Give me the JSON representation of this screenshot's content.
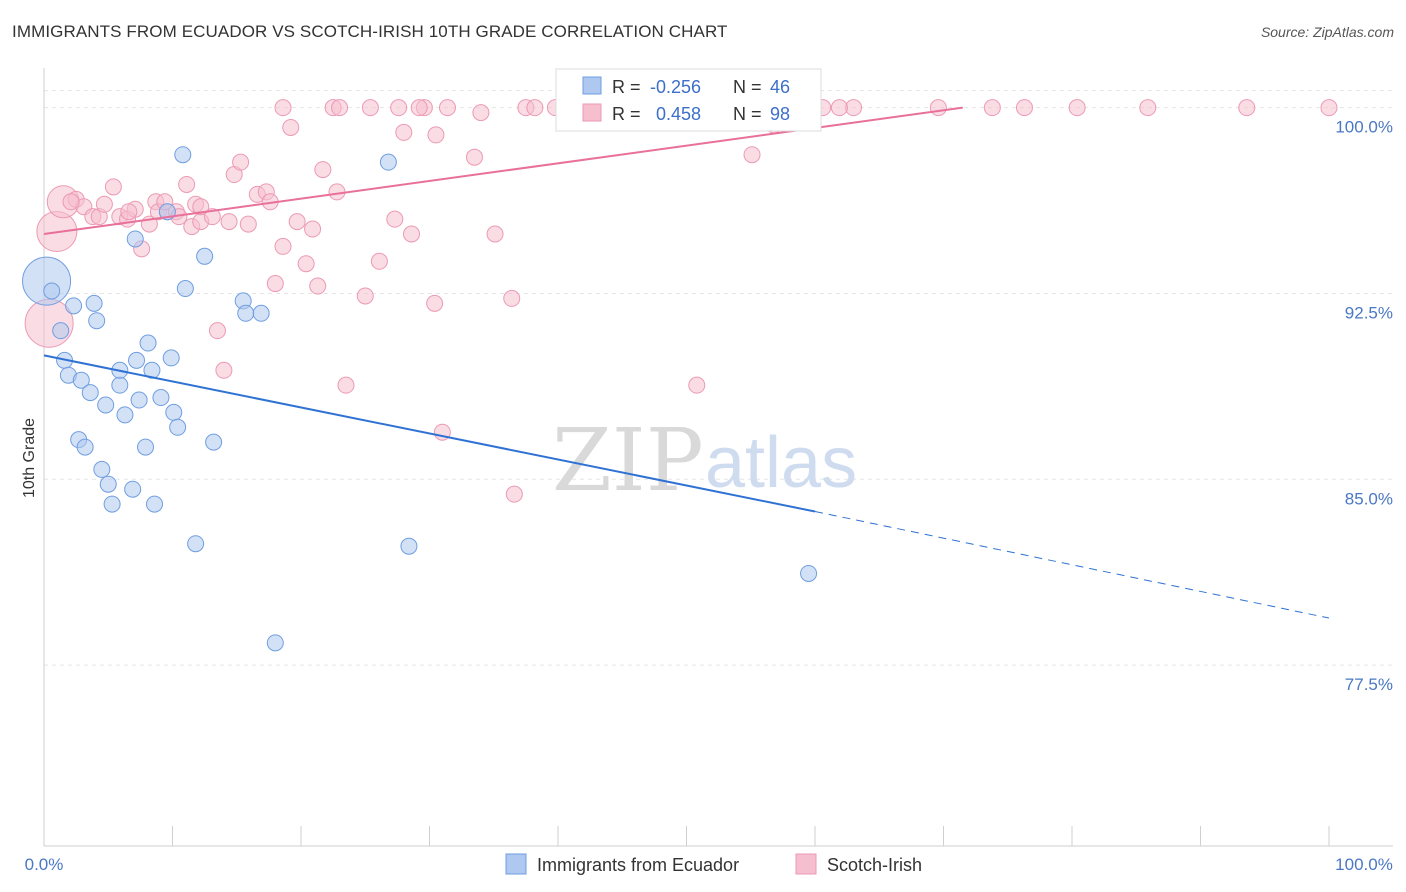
{
  "title": "IMMIGRANTS FROM ECUADOR VS SCOTCH-IRISH 10TH GRADE CORRELATION CHART",
  "source": "Source: ZipAtlas.com",
  "watermark": {
    "zip": "ZIP",
    "atlas": "atlas"
  },
  "colors": {
    "blue_fill": "#aec8ef",
    "blue_stroke": "#6f9ee0",
    "blue_line": "#2f72d4",
    "pink_fill": "#f5bfcf",
    "pink_stroke": "#ec9ab4",
    "pink_line": "#e8709a",
    "grid": "#e5e5e5",
    "tick_text": "#4a78c4"
  },
  "stats": [
    {
      "r_label": "R =",
      "r_value": "-0.256",
      "n_label": "N =",
      "n_value": "46"
    },
    {
      "r_label": "R =",
      "r_value": "0.458",
      "n_label": "N =",
      "n_value": "98"
    }
  ],
  "chart_data": {
    "type": "scatter",
    "title": "IMMIGRANTS FROM ECUADOR VS SCOTCH-IRISH 10TH GRADE CORRELATION CHART",
    "xlabel": "",
    "ylabel": "10th Grade",
    "xlim": [
      0,
      100
    ],
    "ylim": [
      70.2,
      101.6
    ],
    "x_tick_labels": [
      "0.0%",
      "100.0%"
    ],
    "y_ticks": [
      77.5,
      85.0,
      92.5,
      100.0
    ],
    "y_tick_labels": [
      "77.5%",
      "85.0%",
      "92.5%",
      "100.0%"
    ],
    "grid": true,
    "legend_position": "bottom-center",
    "series": [
      {
        "name": "Immigrants from Ecuador",
        "color": "#aec8ef",
        "trend": {
          "x": [
            0,
            60,
            100
          ],
          "y": [
            90.0,
            83.7,
            79.4
          ],
          "solid_until": 60
        },
        "points": [
          [
            0.2,
            93.0,
            3
          ],
          [
            0.6,
            92.6,
            1
          ],
          [
            1.3,
            91.0,
            1
          ],
          [
            2.3,
            92.0,
            1
          ],
          [
            3.9,
            92.1,
            1
          ],
          [
            4.1,
            91.4,
            1
          ],
          [
            1.6,
            89.8,
            1
          ],
          [
            1.9,
            89.2,
            1
          ],
          [
            2.9,
            89.0,
            1
          ],
          [
            3.6,
            88.5,
            1
          ],
          [
            4.8,
            88.0,
            1
          ],
          [
            5.9,
            88.8,
            1
          ],
          [
            5.9,
            89.4,
            1
          ],
          [
            6.3,
            87.6,
            1
          ],
          [
            7.2,
            89.8,
            1
          ],
          [
            7.4,
            88.2,
            1
          ],
          [
            8.1,
            90.5,
            1
          ],
          [
            8.4,
            89.4,
            1
          ],
          [
            9.1,
            88.3,
            1
          ],
          [
            9.9,
            89.9,
            1
          ],
          [
            10.1,
            87.7,
            1
          ],
          [
            10.4,
            87.1,
            1
          ],
          [
            2.7,
            86.6,
            1
          ],
          [
            3.2,
            86.3,
            1
          ],
          [
            7.9,
            86.3,
            1
          ],
          [
            4.5,
            85.4,
            1
          ],
          [
            5.0,
            84.8,
            1
          ],
          [
            6.9,
            84.6,
            1
          ],
          [
            5.3,
            84.0,
            1
          ],
          [
            8.6,
            84.0,
            1
          ],
          [
            11.0,
            92.7,
            1
          ],
          [
            12.5,
            94.0,
            1
          ],
          [
            15.5,
            92.2,
            1
          ],
          [
            15.7,
            91.7,
            1
          ],
          [
            16.9,
            91.7,
            1
          ],
          [
            10.8,
            98.1,
            1
          ],
          [
            13.2,
            86.5,
            1
          ],
          [
            11.8,
            82.4,
            1
          ],
          [
            7.1,
            94.7,
            1
          ],
          [
            9.6,
            95.8,
            1
          ],
          [
            26.8,
            97.8,
            1
          ],
          [
            28.4,
            82.3,
            1
          ],
          [
            59.5,
            81.2,
            1
          ],
          [
            18.0,
            78.4,
            1
          ]
        ]
      },
      {
        "name": "Scotch-Irish",
        "color": "#f5bfcf",
        "trend": {
          "x": [
            0,
            71.5
          ],
          "y": [
            94.9,
            100.0
          ],
          "solid_until": 71.5
        },
        "points": [
          [
            0.4,
            91.3,
            3
          ],
          [
            1.0,
            95.0,
            2.5
          ],
          [
            1.5,
            96.2,
            2
          ],
          [
            2.5,
            96.3,
            1
          ],
          [
            3.1,
            96.0,
            1
          ],
          [
            3.8,
            95.6,
            1
          ],
          [
            4.3,
            95.6,
            1
          ],
          [
            4.7,
            96.1,
            1
          ],
          [
            5.4,
            96.8,
            1
          ],
          [
            5.9,
            95.6,
            1
          ],
          [
            6.5,
            95.5,
            1
          ],
          [
            7.1,
            95.9,
            1
          ],
          [
            7.6,
            94.3,
            1
          ],
          [
            8.2,
            95.3,
            1
          ],
          [
            8.7,
            96.2,
            1
          ],
          [
            8.9,
            95.8,
            1
          ],
          [
            9.6,
            95.8,
            1
          ],
          [
            10.3,
            95.8,
            1
          ],
          [
            10.5,
            95.6,
            1
          ],
          [
            11.1,
            96.9,
            1
          ],
          [
            11.5,
            95.2,
            1
          ],
          [
            11.8,
            96.1,
            1
          ],
          [
            12.2,
            95.4,
            1
          ],
          [
            13.1,
            95.6,
            1
          ],
          [
            13.5,
            91.0,
            1
          ],
          [
            14.4,
            95.4,
            1
          ],
          [
            14.8,
            97.3,
            1
          ],
          [
            15.3,
            97.8,
            1
          ],
          [
            15.9,
            95.3,
            1
          ],
          [
            16.6,
            96.5,
            1
          ],
          [
            17.3,
            96.6,
            1
          ],
          [
            17.6,
            96.2,
            1
          ],
          [
            18.0,
            92.9,
            1
          ],
          [
            18.6,
            94.4,
            1
          ],
          [
            19.2,
            99.2,
            1
          ],
          [
            19.7,
            95.4,
            1
          ],
          [
            20.4,
            93.7,
            1
          ],
          [
            20.9,
            95.1,
            1
          ],
          [
            21.3,
            92.8,
            1
          ],
          [
            21.7,
            97.5,
            1
          ],
          [
            22.8,
            96.6,
            1
          ],
          [
            23.5,
            88.8,
            1
          ],
          [
            25.0,
            92.4,
            1
          ],
          [
            26.1,
            93.8,
            1
          ],
          [
            27.3,
            95.5,
            1
          ],
          [
            28.0,
            99.0,
            1
          ],
          [
            28.6,
            94.9,
            1
          ],
          [
            29.6,
            100.0,
            1
          ],
          [
            30.4,
            92.1,
            1
          ],
          [
            30.5,
            98.9,
            1
          ],
          [
            31.0,
            86.9,
            1
          ],
          [
            33.5,
            98.0,
            1
          ],
          [
            34.0,
            99.8,
            1
          ],
          [
            35.1,
            94.9,
            1
          ],
          [
            36.4,
            92.3,
            1
          ],
          [
            36.6,
            84.4,
            1
          ],
          [
            37.5,
            100.0,
            1
          ],
          [
            42.4,
            100.0,
            1
          ],
          [
            50.3,
            100.0,
            1
          ],
          [
            50.8,
            88.8,
            1
          ],
          [
            53.4,
            100.0,
            1
          ],
          [
            55.1,
            98.1,
            1
          ],
          [
            56.8,
            99.3,
            1
          ],
          [
            57.9,
            100.0,
            1
          ],
          [
            60.6,
            100.0,
            1
          ],
          [
            63.0,
            100.0,
            1
          ],
          [
            69.6,
            100.0,
            1
          ],
          [
            73.8,
            100.0,
            1
          ],
          [
            76.3,
            100.0,
            1
          ],
          [
            80.4,
            100.0,
            1
          ],
          [
            85.9,
            100.0,
            1
          ],
          [
            93.6,
            100.0,
            1
          ],
          [
            100.0,
            100.0,
            1
          ],
          [
            22.5,
            100.0,
            1
          ],
          [
            25.4,
            100.0,
            1
          ],
          [
            27.6,
            100.0,
            1
          ],
          [
            31.4,
            100.0,
            1
          ],
          [
            39.8,
            100.0,
            1
          ],
          [
            48.0,
            100.0,
            1
          ],
          [
            38.2,
            100.0,
            1
          ],
          [
            41.2,
            100.0,
            1
          ],
          [
            44.0,
            100.0,
            1
          ],
          [
            47.3,
            100.0,
            1
          ],
          [
            18.6,
            100.0,
            1
          ],
          [
            12.2,
            96.0,
            1
          ],
          [
            9.4,
            96.2,
            1
          ],
          [
            2.1,
            96.2,
            1
          ],
          [
            14.0,
            89.4,
            1
          ],
          [
            6.6,
            95.8,
            1
          ],
          [
            23.0,
            100.0,
            1
          ],
          [
            29.2,
            100.0,
            1
          ],
          [
            45.5,
            100.0,
            1
          ],
          [
            40.9,
            100.0,
            1
          ],
          [
            61.9,
            100.0,
            1
          ]
        ]
      }
    ]
  },
  "legend": [
    {
      "label": "Immigrants from Ecuador"
    },
    {
      "label": "Scotch-Irish"
    }
  ]
}
